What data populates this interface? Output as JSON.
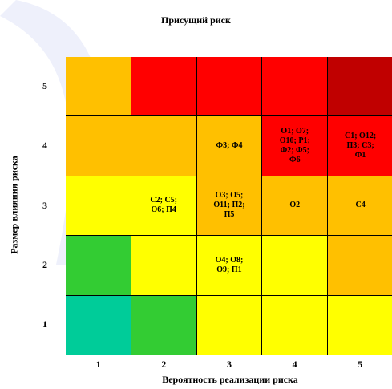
{
  "chart_data": {
    "type": "heatmap",
    "title": "Присущий риск",
    "xlabel": "Вероятность реализации риска",
    "ylabel": "Размер влияния риска",
    "x_ticks": [
      "1",
      "2",
      "3",
      "4",
      "5"
    ],
    "y_ticks": [
      "5",
      "4",
      "3",
      "2",
      "1"
    ],
    "cells": [
      [
        {
          "color": "#ffc000",
          "label": ""
        },
        {
          "color": "#ff0000",
          "label": ""
        },
        {
          "color": "#ff0000",
          "label": ""
        },
        {
          "color": "#ff0000",
          "label": ""
        },
        {
          "color": "#c00000",
          "label": ""
        }
      ],
      [
        {
          "color": "#ffc000",
          "label": ""
        },
        {
          "color": "#ffc000",
          "label": ""
        },
        {
          "color": "#ffc000",
          "label": "Ф3; Ф4"
        },
        {
          "color": "#ff0000",
          "label": "О1; О7;\nО10; Р1;\nФ2; Ф5;\nФ6"
        },
        {
          "color": "#ff0000",
          "label": "С1; О12;\nП3; С3;\nФ1"
        }
      ],
      [
        {
          "color": "#ffff00",
          "label": ""
        },
        {
          "color": "#ffff00",
          "label": "С2; С5;\nО6; П4"
        },
        {
          "color": "#ffc000",
          "label": "О3; О5;\nО11; П2;\nП5"
        },
        {
          "color": "#ffc000",
          "label": "О2"
        },
        {
          "color": "#ffc000",
          "label": "С4"
        }
      ],
      [
        {
          "color": "#33cc33",
          "label": ""
        },
        {
          "color": "#ffff00",
          "label": ""
        },
        {
          "color": "#ffff00",
          "label": "О4; О8;\nО9; П1"
        },
        {
          "color": "#ffff00",
          "label": ""
        },
        {
          "color": "#ffc000",
          "label": ""
        }
      ],
      [
        {
          "color": "#00cc99",
          "label": ""
        },
        {
          "color": "#33cc33",
          "label": ""
        },
        {
          "color": "#ffff00",
          "label": ""
        },
        {
          "color": "#ffff00",
          "label": ""
        },
        {
          "color": "#ffff00",
          "label": ""
        }
      ]
    ]
  }
}
